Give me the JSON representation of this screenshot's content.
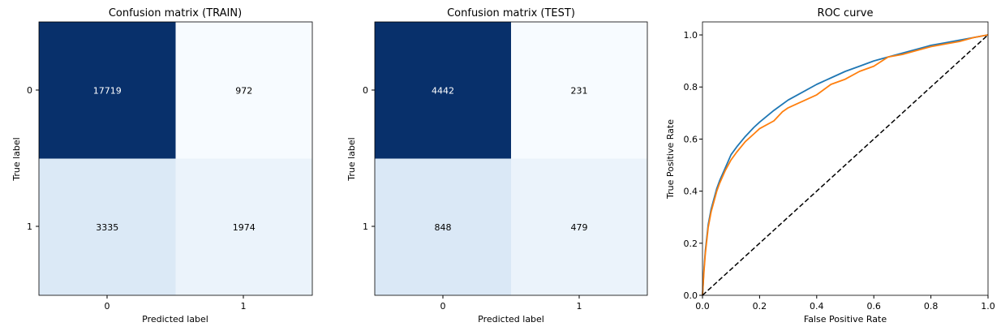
{
  "chart_data": [
    {
      "type": "heatmap",
      "title": "Confusion matrix (TRAIN)",
      "xlabel": "Predicted label",
      "ylabel": "True label",
      "x_ticks": [
        "0",
        "1"
      ],
      "y_ticks": [
        "0",
        "1"
      ],
      "colormap": "Blues",
      "values": [
        [
          17719,
          972
        ],
        [
          3335,
          1974
        ]
      ]
    },
    {
      "type": "heatmap",
      "title": "Confusion matrix (TEST)",
      "xlabel": "Predicted label",
      "ylabel": "True label",
      "x_ticks": [
        "0",
        "1"
      ],
      "y_ticks": [
        "0",
        "1"
      ],
      "colormap": "Blues",
      "values": [
        [
          4442,
          231
        ],
        [
          848,
          479
        ]
      ]
    },
    {
      "type": "line",
      "title": "ROC curve",
      "xlabel": "False Positive Rate",
      "ylabel": "True Positive Rate",
      "xlim": [
        0.0,
        1.0
      ],
      "ylim": [
        0.0,
        1.05
      ],
      "x_ticks": [
        "0.0",
        "0.2",
        "0.4",
        "0.6",
        "0.8",
        "1.0"
      ],
      "y_ticks": [
        "0.0",
        "0.2",
        "0.4",
        "0.6",
        "0.8",
        "1.0"
      ],
      "grid": false,
      "series": [
        {
          "color": "#1f77b4",
          "x": [
            0,
            0.005,
            0.01,
            0.02,
            0.03,
            0.04,
            0.05,
            0.06,
            0.08,
            0.1,
            0.12,
            0.15,
            0.18,
            0.2,
            0.25,
            0.3,
            0.35,
            0.4,
            0.45,
            0.5,
            0.55,
            0.6,
            0.65,
            0.7,
            0.75,
            0.8,
            0.85,
            0.9,
            0.95,
            1.0
          ],
          "y": [
            0,
            0.1,
            0.17,
            0.27,
            0.33,
            0.37,
            0.41,
            0.44,
            0.49,
            0.54,
            0.57,
            0.61,
            0.645,
            0.665,
            0.71,
            0.75,
            0.78,
            0.81,
            0.835,
            0.86,
            0.88,
            0.9,
            0.915,
            0.93,
            0.945,
            0.96,
            0.97,
            0.98,
            0.99,
            1.0
          ]
        },
        {
          "color": "#ff7f0e",
          "x": [
            0,
            0.005,
            0.01,
            0.02,
            0.03,
            0.04,
            0.05,
            0.06,
            0.08,
            0.1,
            0.12,
            0.15,
            0.18,
            0.2,
            0.25,
            0.28,
            0.3,
            0.35,
            0.4,
            0.45,
            0.5,
            0.55,
            0.6,
            0.65,
            0.7,
            0.75,
            0.8,
            0.85,
            0.9,
            0.95,
            1.0
          ],
          "y": [
            0,
            0.09,
            0.16,
            0.26,
            0.32,
            0.36,
            0.4,
            0.43,
            0.48,
            0.52,
            0.55,
            0.59,
            0.62,
            0.64,
            0.67,
            0.705,
            0.72,
            0.745,
            0.77,
            0.81,
            0.83,
            0.86,
            0.88,
            0.915,
            0.925,
            0.94,
            0.955,
            0.965,
            0.975,
            0.99,
            1.0
          ]
        },
        {
          "color": "#000000",
          "style": "dashed",
          "x": [
            0,
            1
          ],
          "y": [
            0,
            1
          ]
        }
      ]
    }
  ]
}
